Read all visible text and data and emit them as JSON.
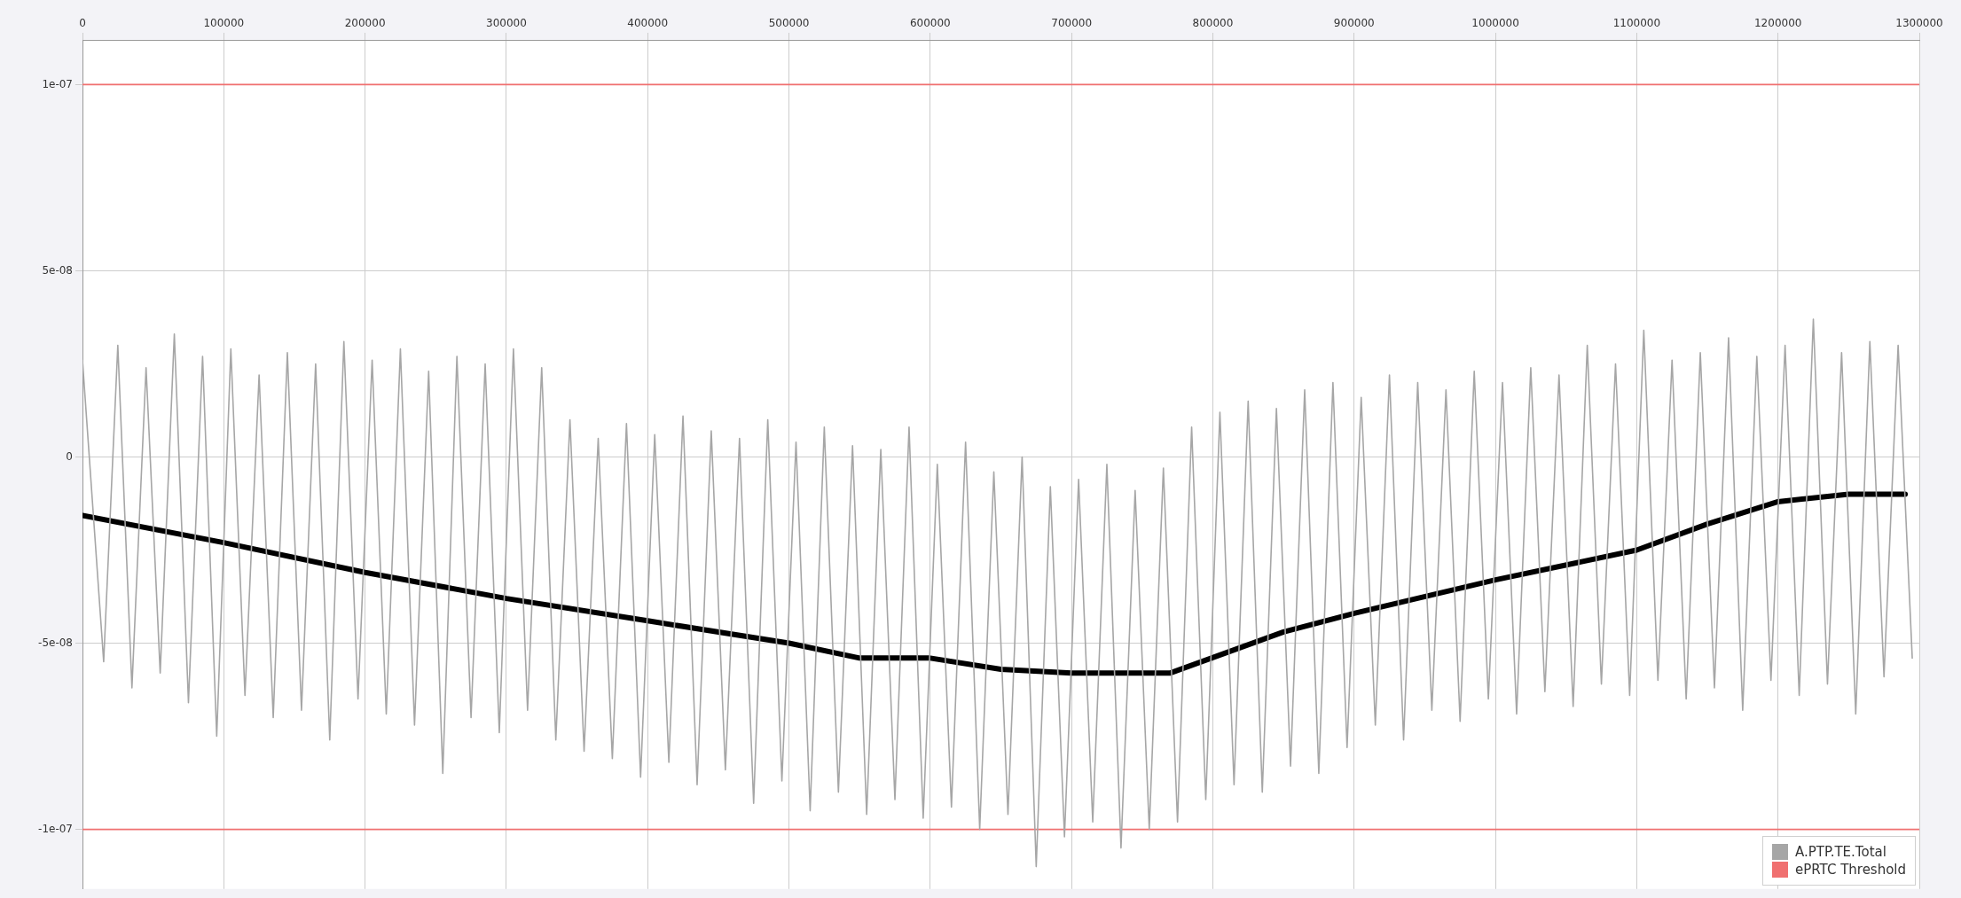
{
  "chart_data": {
    "type": "line",
    "xlim": [
      0,
      1300000
    ],
    "xticks": [
      0,
      100000,
      200000,
      300000,
      400000,
      500000,
      600000,
      700000,
      800000,
      900000,
      1000000,
      1100000,
      1200000,
      1300000
    ],
    "ylim": [
      -1.16e-07,
      1.12e-07
    ],
    "yticks": [
      {
        "value": -1e-07,
        "label": "-1e-07"
      },
      {
        "value": -5e-08,
        "label": "-5e-08"
      },
      0,
      {
        "value": 5e-08,
        "label": "5e-08"
      },
      {
        "value": 1e-07,
        "label": "1e-07"
      }
    ],
    "grid": true,
    "legend": "bottom right",
    "marker": "none",
    "line_style": "solid",
    "series": [
      {
        "name": "A.PTP.TE.Total",
        "color": "#a6a6a6",
        "x": [
          0,
          15000,
          25000,
          35000,
          45000,
          55000,
          65000,
          75000,
          85000,
          95000,
          105000,
          115000,
          125000,
          135000,
          145000,
          155000,
          165000,
          175000,
          185000,
          195000,
          205000,
          215000,
          225000,
          235000,
          245000,
          255000,
          265000,
          275000,
          285000,
          295000,
          305000,
          315000,
          325000,
          335000,
          345000,
          355000,
          365000,
          375000,
          385000,
          395000,
          405000,
          415000,
          425000,
          435000,
          445000,
          455000,
          465000,
          475000,
          485000,
          495000,
          505000,
          515000,
          525000,
          535000,
          545000,
          555000,
          565000,
          575000,
          585000,
          595000,
          605000,
          615000,
          625000,
          635000,
          645000,
          655000,
          665000,
          675000,
          685000,
          695000,
          705000,
          715000,
          725000,
          735000,
          745000,
          755000,
          765000,
          775000,
          785000,
          795000,
          805000,
          815000,
          825000,
          835000,
          845000,
          855000,
          865000,
          875000,
          885000,
          895000,
          905000,
          915000,
          925000,
          935000,
          945000,
          955000,
          965000,
          975000,
          985000,
          995000,
          1005000,
          1015000,
          1025000,
          1035000,
          1045000,
          1055000,
          1065000,
          1075000,
          1085000,
          1095000,
          1105000,
          1115000,
          1125000,
          1135000,
          1145000,
          1155000,
          1165000,
          1175000,
          1185000,
          1195000,
          1205000,
          1215000,
          1225000,
          1235000,
          1245000,
          1255000,
          1265000,
          1275000,
          1285000,
          1295000
        ],
        "values": [
          2.6e-08,
          -5.5e-08,
          3e-08,
          -6.2e-08,
          2.4e-08,
          -5.8e-08,
          3.3e-08,
          -6.6e-08,
          2.7e-08,
          -7.5e-08,
          2.9e-08,
          -6.4e-08,
          2.2e-08,
          -7e-08,
          2.8e-08,
          -6.8e-08,
          2.5e-08,
          -7.6e-08,
          3.1e-08,
          -6.5e-08,
          2.6e-08,
          -6.9e-08,
          2.9e-08,
          -7.2e-08,
          2.3e-08,
          -8.5e-08,
          2.7e-08,
          -7e-08,
          2.5e-08,
          -7.4e-08,
          2.9e-08,
          -6.8e-08,
          2.4e-08,
          -7.6e-08,
          1e-08,
          -7.9e-08,
          5e-09,
          -8.1e-08,
          9e-09,
          -8.6e-08,
          6e-09,
          -8.2e-08,
          1.1e-08,
          -8.8e-08,
          7e-09,
          -8.4e-08,
          5e-09,
          -9.3e-08,
          1e-08,
          -8.7e-08,
          4e-09,
          -9.5e-08,
          8e-09,
          -9e-08,
          3e-09,
          -9.6e-08,
          2e-09,
          -9.2e-08,
          8e-09,
          -9.7e-08,
          -2e-09,
          -9.4e-08,
          4e-09,
          -1e-07,
          -4e-09,
          -9.6e-08,
          0,
          -1.1e-07,
          -8e-09,
          -1.02e-07,
          -6e-09,
          -9.8e-08,
          -2e-09,
          -1.05e-07,
          -9e-09,
          -1e-07,
          -3e-09,
          -9.8e-08,
          8e-09,
          -9.2e-08,
          1.2e-08,
          -8.8e-08,
          1.5e-08,
          -9e-08,
          1.3e-08,
          -8.3e-08,
          1.8e-08,
          -8.5e-08,
          2e-08,
          -7.8e-08,
          1.6e-08,
          -7.2e-08,
          2.2e-08,
          -7.6e-08,
          2e-08,
          -6.8e-08,
          1.8e-08,
          -7.1e-08,
          2.3e-08,
          -6.5e-08,
          2e-08,
          -6.9e-08,
          2.4e-08,
          -6.3e-08,
          2.2e-08,
          -6.7e-08,
          3e-08,
          -6.1e-08,
          2.5e-08,
          -6.4e-08,
          3.4e-08,
          -6e-08,
          2.6e-08,
          -6.5e-08,
          2.8e-08,
          -6.2e-08,
          3.2e-08,
          -6.8e-08,
          2.7e-08,
          -6e-08,
          3e-08,
          -6.4e-08,
          3.7e-08,
          -6.1e-08,
          2.8e-08,
          -6.9e-08,
          3.1e-08,
          -5.9e-08,
          3e-08,
          -5.4e-08
        ]
      },
      {
        "color": "#000000",
        "x": [
          0,
          100000,
          200000,
          300000,
          400000,
          500000,
          550000,
          600000,
          650000,
          700000,
          770000,
          850000,
          900000,
          1000000,
          1100000,
          1150000,
          1200000,
          1250000,
          1290000
        ],
        "values": [
          -1.57e-08,
          -2.3e-08,
          -3.1e-08,
          -3.8e-08,
          -4.4e-08,
          -5e-08,
          -5.4e-08,
          -5.4e-08,
          -5.7e-08,
          -5.8e-08,
          -5.8e-08,
          -4.7e-08,
          -4.2e-08,
          -3.3e-08,
          -2.5e-08,
          -1.8e-08,
          -1.2e-08,
          -1e-08,
          -1e-08
        ]
      },
      {
        "name": "ePRTC Threshold",
        "color": "#f07070",
        "x": [
          0,
          1300000
        ],
        "values": [
          1e-07,
          1e-07
        ]
      },
      {
        "color": "#f07070",
        "x": [
          0,
          1300000
        ],
        "values": [
          -1e-07,
          -1e-07
        ]
      }
    ]
  }
}
